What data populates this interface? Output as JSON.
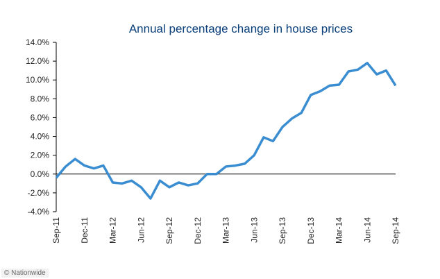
{
  "chart_data": {
    "type": "line",
    "title": "Annual percentage change in house prices",
    "xlabel": "",
    "ylabel": "",
    "ylim": [
      -4,
      14
    ],
    "yticks": [
      "-4.0%",
      "-2.0%",
      "0.0%",
      "2.0%",
      "4.0%",
      "6.0%",
      "8.0%",
      "10.0%",
      "12.0%",
      "14.0%"
    ],
    "xtick_labels": [
      "Sep-11",
      "Dec-11",
      "Mar-12",
      "Jun-12",
      "Sep-12",
      "Dec-12",
      "Mar-13",
      "Jun-13",
      "Sep-13",
      "Dec-13",
      "Mar-14",
      "Jun-14",
      "Sep-14"
    ],
    "grid": false,
    "line_color": "#3a8dd0",
    "x": [
      "Sep-11",
      "Oct-11",
      "Nov-11",
      "Dec-11",
      "Jan-12",
      "Feb-12",
      "Mar-12",
      "Apr-12",
      "May-12",
      "Jun-12",
      "Jul-12",
      "Aug-12",
      "Sep-12",
      "Oct-12",
      "Nov-12",
      "Dec-12",
      "Jan-13",
      "Feb-13",
      "Mar-13",
      "Apr-13",
      "May-13",
      "Jun-13",
      "Jul-13",
      "Aug-13",
      "Sep-13",
      "Oct-13",
      "Nov-13",
      "Dec-13",
      "Jan-14",
      "Feb-14",
      "Mar-14",
      "Apr-14",
      "May-14",
      "Jun-14",
      "Jul-14",
      "Aug-14",
      "Sep-14"
    ],
    "values": [
      -0.4,
      0.8,
      1.6,
      0.9,
      0.6,
      0.9,
      -0.9,
      -1.0,
      -0.7,
      -1.4,
      -2.6,
      -0.7,
      -1.4,
      -0.9,
      -1.2,
      -1.0,
      0.0,
      0.0,
      0.8,
      0.9,
      1.1,
      2.0,
      3.9,
      3.5,
      5.0,
      5.9,
      6.5,
      8.4,
      8.8,
      9.4,
      9.5,
      10.9,
      11.1,
      11.8,
      10.6,
      11.0,
      9.4
    ]
  },
  "credit": "© Nationwide"
}
